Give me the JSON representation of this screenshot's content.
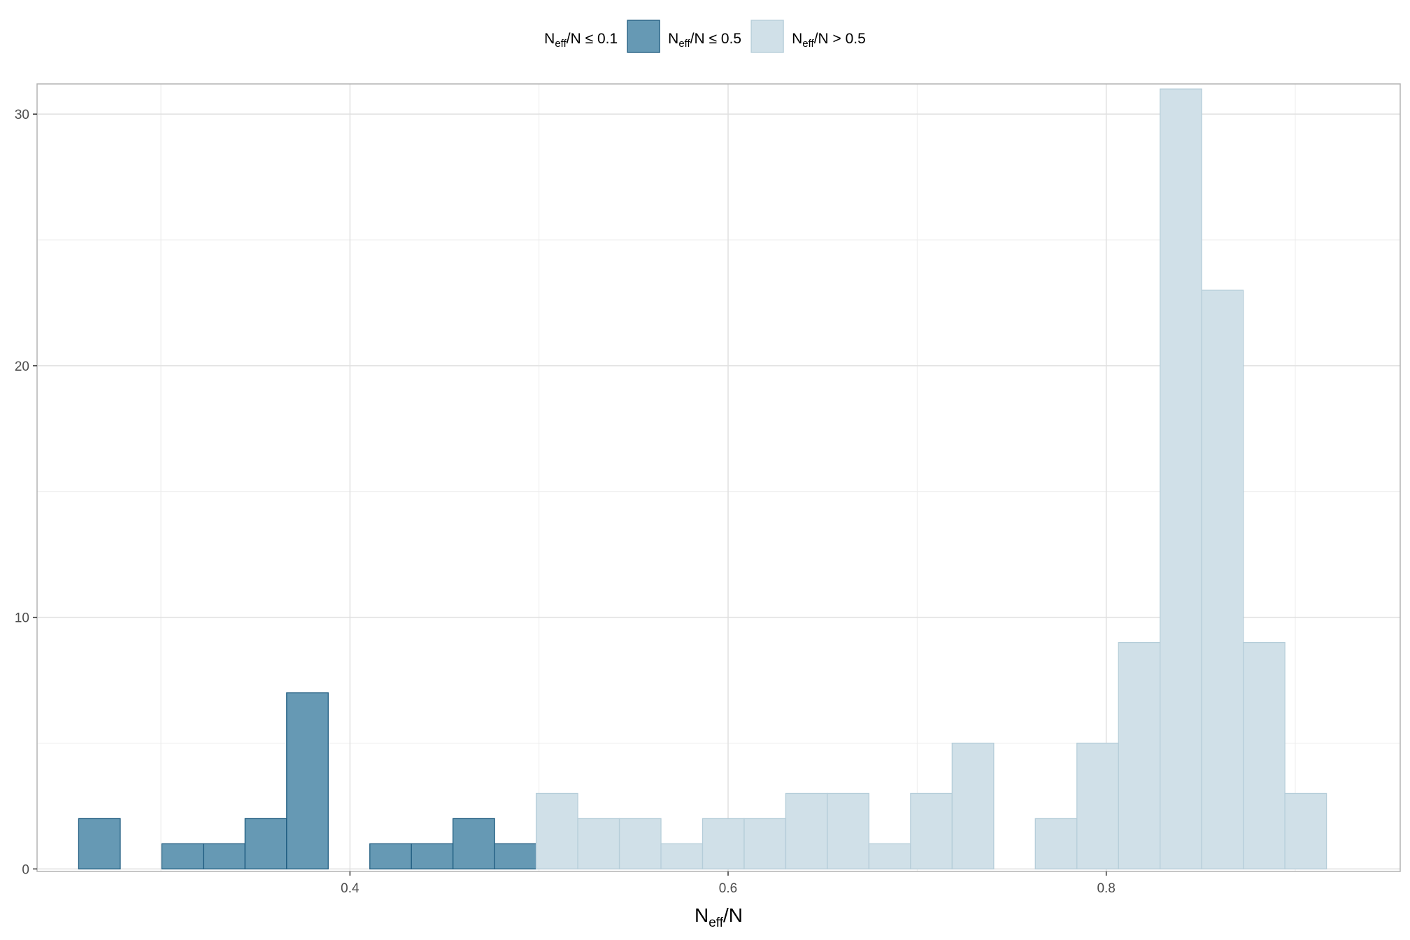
{
  "chart_data": {
    "type": "bar",
    "subtype": "histogram",
    "xlabel_main": "N",
    "xlabel_sub": "eff",
    "xlabel_tail": "/N",
    "ylabel": "",
    "xlim": [
      0.2345,
      0.9555
    ],
    "ylim": [
      -0.1,
      31.2
    ],
    "x_ticks": [
      {
        "value": 0.4,
        "label": "0.4"
      },
      {
        "value": 0.6,
        "label": "0.6"
      },
      {
        "value": 0.8,
        "label": "0.8"
      }
    ],
    "x_minor_ticks": [
      0.3,
      0.5,
      0.7,
      0.9
    ],
    "y_ticks": [
      {
        "value": 0,
        "label": "0"
      },
      {
        "value": 10,
        "label": "10"
      },
      {
        "value": 20,
        "label": "20"
      },
      {
        "value": 30,
        "label": "30"
      }
    ],
    "y_minor_ticks": [
      5,
      15,
      25
    ],
    "grid": true,
    "legend_position": "top",
    "legend": [
      {
        "key": "le01",
        "main": "N",
        "sub": "eff",
        "tail": "/N ≤ 0.1",
        "swatch": false
      },
      {
        "key": "le05",
        "main": "N",
        "sub": "eff",
        "tail": "/N ≤ 0.5",
        "swatch": true
      },
      {
        "key": "gt05",
        "main": "N",
        "sub": "eff",
        "tail": "/N > 0.5",
        "swatch": true
      }
    ],
    "colors": {
      "le05": {
        "fill": "#6699b4",
        "stroke": "#1f5c80"
      },
      "gt05": {
        "fill": "#d0e0e8",
        "stroke": "#b5cdd9"
      }
    },
    "bins": [
      {
        "x0": 0.2565,
        "x1": 0.2785,
        "count": 2,
        "group": "le05"
      },
      {
        "x0": 0.2785,
        "x1": 0.3005,
        "count": 0,
        "group": "le05"
      },
      {
        "x0": 0.3005,
        "x1": 0.3225,
        "count": 1,
        "group": "le05"
      },
      {
        "x0": 0.3225,
        "x1": 0.3445,
        "count": 1,
        "group": "le05"
      },
      {
        "x0": 0.3445,
        "x1": 0.3665,
        "count": 2,
        "group": "le05"
      },
      {
        "x0": 0.3665,
        "x1": 0.3885,
        "count": 7,
        "group": "le05"
      },
      {
        "x0": 0.3885,
        "x1": 0.4105,
        "count": 0,
        "group": "le05"
      },
      {
        "x0": 0.4105,
        "x1": 0.4325,
        "count": 1,
        "group": "le05"
      },
      {
        "x0": 0.4325,
        "x1": 0.4545,
        "count": 1,
        "group": "le05"
      },
      {
        "x0": 0.4545,
        "x1": 0.4765,
        "count": 2,
        "group": "le05"
      },
      {
        "x0": 0.4765,
        "x1": 0.4985,
        "count": 1,
        "group": "le05"
      },
      {
        "x0": 0.4985,
        "x1": 0.5205,
        "count": 3,
        "group": "gt05"
      },
      {
        "x0": 0.5205,
        "x1": 0.5425,
        "count": 2,
        "group": "gt05"
      },
      {
        "x0": 0.5425,
        "x1": 0.5645,
        "count": 2,
        "group": "gt05"
      },
      {
        "x0": 0.5645,
        "x1": 0.5865,
        "count": 1,
        "group": "gt05"
      },
      {
        "x0": 0.5865,
        "x1": 0.6085,
        "count": 2,
        "group": "gt05"
      },
      {
        "x0": 0.6085,
        "x1": 0.6305,
        "count": 2,
        "group": "gt05"
      },
      {
        "x0": 0.6305,
        "x1": 0.6525,
        "count": 3,
        "group": "gt05"
      },
      {
        "x0": 0.6525,
        "x1": 0.6745,
        "count": 3,
        "group": "gt05"
      },
      {
        "x0": 0.6745,
        "x1": 0.6965,
        "count": 1,
        "group": "gt05"
      },
      {
        "x0": 0.6965,
        "x1": 0.7185,
        "count": 3,
        "group": "gt05"
      },
      {
        "x0": 0.7185,
        "x1": 0.7405,
        "count": 5,
        "group": "gt05"
      },
      {
        "x0": 0.7405,
        "x1": 0.7625,
        "count": 0,
        "group": "gt05"
      },
      {
        "x0": 0.7625,
        "x1": 0.7845,
        "count": 2,
        "group": "gt05"
      },
      {
        "x0": 0.7845,
        "x1": 0.8065,
        "count": 5,
        "group": "gt05"
      },
      {
        "x0": 0.8065,
        "x1": 0.8285,
        "count": 9,
        "group": "gt05"
      },
      {
        "x0": 0.8285,
        "x1": 0.8505,
        "count": 31,
        "group": "gt05"
      },
      {
        "x0": 0.8505,
        "x1": 0.8725,
        "count": 23,
        "group": "gt05"
      },
      {
        "x0": 0.8725,
        "x1": 0.8945,
        "count": 9,
        "group": "gt05"
      },
      {
        "x0": 0.8945,
        "x1": 0.9165,
        "count": 3,
        "group": "gt05"
      }
    ]
  }
}
